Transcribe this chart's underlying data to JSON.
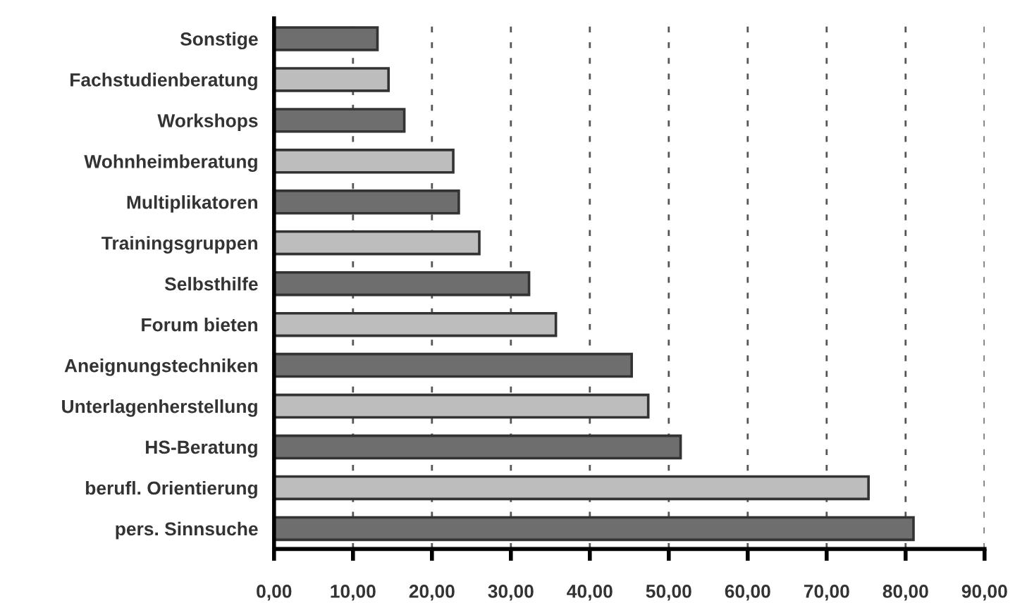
{
  "chart_data": {
    "type": "bar",
    "orientation": "horizontal",
    "categories": [
      "Sonstige",
      "Fachstudienberatung",
      "Workshops",
      "Wohnheimberatung",
      "Multiplikatoren",
      "Trainingsgruppen",
      "Selbsthilfe",
      "Forum bieten",
      "Aneignungstechniken",
      "Unterlagenherstellung",
      "HS-Beratung",
      "berufl. Orientierung",
      "pers. Sinnsuche"
    ],
    "values": [
      13.1,
      14.5,
      16.5,
      22.7,
      23.4,
      26.0,
      32.3,
      35.7,
      45.3,
      47.4,
      51.5,
      75.3,
      81.0
    ],
    "colors": [
      "#6e6e6e",
      "#bdbdbd",
      "#6e6e6e",
      "#bdbdbd",
      "#6e6e6e",
      "#bdbdbd",
      "#6e6e6e",
      "#bdbdbd",
      "#6e6e6e",
      "#bdbdbd",
      "#6e6e6e",
      "#bdbdbd",
      "#6e6e6e"
    ],
    "xlim": [
      0,
      90
    ],
    "xticks": [
      {
        "value": 0,
        "label": "0,00"
      },
      {
        "value": 10,
        "label": "10,00"
      },
      {
        "value": 20,
        "label": "20,00"
      },
      {
        "value": 30,
        "label": "30,00"
      },
      {
        "value": 40,
        "label": "40,00"
      },
      {
        "value": 50,
        "label": "50,00"
      },
      {
        "value": 60,
        "label": "60,00"
      },
      {
        "value": 70,
        "label": "70,00"
      },
      {
        "value": 80,
        "label": "80,00"
      },
      {
        "value": 90,
        "label": "90,00"
      }
    ],
    "grid": "x",
    "line_style": "dashed",
    "legend": false
  }
}
